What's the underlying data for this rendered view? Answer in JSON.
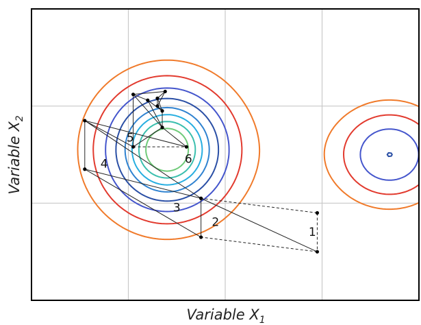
{
  "chart_data": {
    "type": "contour",
    "xlabel_text": "Variable",
    "xlabel_var": "X",
    "xlabel_sub": "1",
    "ylabel_text": "Variable",
    "ylabel_var": "X",
    "ylabel_sub": "2",
    "grid": true,
    "minima": [
      {
        "x": 1.4,
        "y": 1.55,
        "depth": 1.15,
        "sx": 0.62,
        "sy": 0.62
      },
      {
        "x": 3.7,
        "y": 1.5,
        "depth": 0.8,
        "sx": 0.52,
        "sy": 0.46
      }
    ],
    "contour_levels": [
      0.3,
      0.42,
      0.55,
      0.68,
      0.82,
      0.92,
      0.97,
      1.03,
      1.1,
      1.2,
      1.32,
      1.46,
      1.62
    ],
    "contour_colors": [
      "#ff7f1f",
      "#ff9a1a",
      "#ffc21f",
      "#f3e84a",
      "#b7dc55",
      "#6fca79",
      "#3bbfae",
      "#27aee0",
      "#2f82d0",
      "#2a4fa5",
      "#4455cc",
      "#e23a2e",
      "#f07a2a"
    ],
    "step_labels": [
      "1",
      "2",
      "3",
      "4",
      "5",
      "6"
    ],
    "step_label_positions": [
      {
        "label": "1",
        "x": 2.9,
        "y": 0.7
      },
      {
        "label": "2",
        "x": 1.9,
        "y": 0.8
      },
      {
        "label": "3",
        "x": 1.5,
        "y": 0.95
      },
      {
        "label": "4",
        "x": 0.75,
        "y": 1.4
      },
      {
        "label": "5",
        "x": 1.02,
        "y": 1.67
      },
      {
        "label": "6",
        "x": 1.62,
        "y": 1.45
      }
    ],
    "simplex_vertices": [
      {
        "x": 2.95,
        "y": 0.9
      },
      {
        "x": 2.95,
        "y": 0.5
      },
      {
        "x": 1.75,
        "y": 1.05
      },
      {
        "x": 1.75,
        "y": 0.65
      },
      {
        "x": 0.55,
        "y": 1.35
      },
      {
        "x": 0.55,
        "y": 1.85
      },
      {
        "x": 1.05,
        "y": 1.58
      },
      {
        "x": 1.6,
        "y": 1.58
      },
      {
        "x": 1.35,
        "y": 1.78
      },
      {
        "x": 1.05,
        "y": 2.12
      },
      {
        "x": 1.2,
        "y": 2.06
      },
      {
        "x": 1.35,
        "y": 1.95
      },
      {
        "x": 1.3,
        "y": 2.0
      },
      {
        "x": 1.3,
        "y": 2.08
      },
      {
        "x": 1.38,
        "y": 2.15
      }
    ],
    "simplex_edges": [
      [
        0,
        1,
        "dashed"
      ],
      [
        1,
        3,
        "dashed"
      ],
      [
        0,
        2,
        "dashed"
      ],
      [
        1,
        2,
        "solid"
      ],
      [
        2,
        3,
        "solid"
      ],
      [
        2,
        4,
        "solid"
      ],
      [
        3,
        4,
        "solid"
      ],
      [
        4,
        5,
        "solid"
      ],
      [
        5,
        2,
        "solid"
      ],
      [
        5,
        6,
        "solid"
      ],
      [
        6,
        7,
        "dashed"
      ],
      [
        5,
        7,
        "solid"
      ],
      [
        6,
        8,
        "solid"
      ],
      [
        7,
        8,
        "solid"
      ],
      [
        6,
        9,
        "solid"
      ],
      [
        8,
        9,
        "solid"
      ],
      [
        9,
        10,
        "solid"
      ],
      [
        8,
        10,
        "solid"
      ],
      [
        10,
        11,
        "solid"
      ],
      [
        8,
        11,
        "solid"
      ],
      [
        11,
        12,
        "solid"
      ],
      [
        12,
        13,
        "solid"
      ],
      [
        11,
        13,
        "solid"
      ],
      [
        13,
        14,
        "solid"
      ],
      [
        12,
        14,
        "solid"
      ],
      [
        9,
        14,
        "solid"
      ]
    ],
    "xlim": [
      0,
      4
    ],
    "ylim": [
      0,
      3
    ]
  }
}
